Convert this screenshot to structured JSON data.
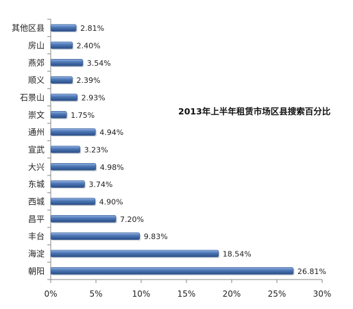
{
  "chart_data": {
    "type": "bar",
    "orientation": "horizontal",
    "title": "2013年上半年租赁市场区县搜索百分比",
    "categories": [
      "朝阳",
      "海淀",
      "丰台",
      "昌平",
      "西城",
      "东城",
      "大兴",
      "宣武",
      "通州",
      "崇文",
      "石景山",
      "顺义",
      "燕郊",
      "房山",
      "其他区县"
    ],
    "values": [
      26.81,
      18.54,
      9.83,
      7.2,
      4.9,
      3.74,
      4.98,
      3.23,
      4.94,
      1.75,
      2.93,
      2.39,
      3.54,
      2.4,
      2.81
    ],
    "data_labels": [
      "26.81%",
      "18.54%",
      "9.83%",
      "7.20%",
      "4.90%",
      "3.74%",
      "4.98%",
      "3.23%",
      "4.94%",
      "1.75%",
      "2.93%",
      "2.39%",
      "3.54%",
      "2.40%",
      "2.81%"
    ],
    "xlim": [
      0,
      30
    ],
    "x_ticks": [
      0,
      5,
      10,
      15,
      20,
      25,
      30
    ],
    "x_tick_labels": [
      "0%",
      "5%",
      "10%",
      "15%",
      "20%",
      "25%",
      "30%"
    ],
    "xlabel": "",
    "ylabel": "",
    "grid": false,
    "legend": "none",
    "bar_color": "#4a74b3",
    "bar_color_light": "#8fb0e0",
    "bar_color_dark": "#2c4f86"
  }
}
